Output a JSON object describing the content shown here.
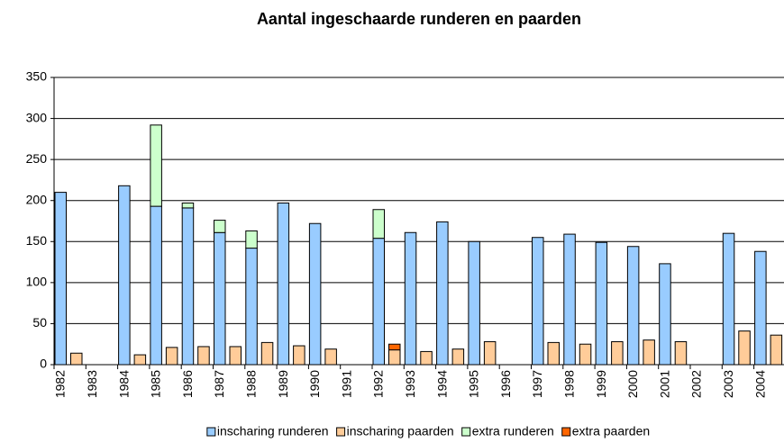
{
  "chart_data": {
    "type": "bar",
    "title": "Aantal ingeschaarde runderen en paarden",
    "categories": [
      "1982",
      "1983",
      "1984",
      "1985",
      "1986",
      "1987",
      "1988",
      "1989",
      "1990",
      "1991",
      "1992",
      "1993",
      "1994",
      "1995",
      "1996",
      "1997",
      "1998",
      "1999",
      "2000",
      "2001",
      "2002",
      "2003",
      "2004"
    ],
    "series": [
      {
        "name": "inscharing runderen",
        "color": "#99ccff",
        "values": [
          210,
          null,
          218,
          193,
          191,
          161,
          142,
          197,
          172,
          null,
          154,
          161,
          174,
          150,
          null,
          155,
          159,
          149,
          144,
          123,
          null,
          160,
          138
        ]
      },
      {
        "name": "inscharing paarden",
        "color": "#ffcc99",
        "values": [
          14,
          null,
          12,
          21,
          22,
          22,
          27,
          23,
          19,
          null,
          18,
          16,
          19,
          28,
          null,
          27,
          25,
          28,
          30,
          28,
          null,
          41,
          36
        ]
      },
      {
        "name": "extra runderen",
        "color": "#ccffcc",
        "values": [
          null,
          null,
          null,
          99,
          6,
          15,
          21,
          null,
          null,
          null,
          35,
          null,
          null,
          null,
          null,
          null,
          null,
          null,
          null,
          null,
          null,
          null,
          null
        ]
      },
      {
        "name": "extra paarden",
        "color": "#ff6600",
        "values": [
          null,
          null,
          null,
          null,
          null,
          null,
          null,
          null,
          null,
          null,
          7,
          null,
          null,
          null,
          null,
          null,
          null,
          null,
          null,
          null,
          null,
          null,
          null
        ]
      }
    ],
    "ylim": [
      0,
      350
    ],
    "yticks": [
      0,
      50,
      100,
      150,
      200,
      250,
      300,
      350
    ],
    "grid": true,
    "legend": "bottom"
  }
}
